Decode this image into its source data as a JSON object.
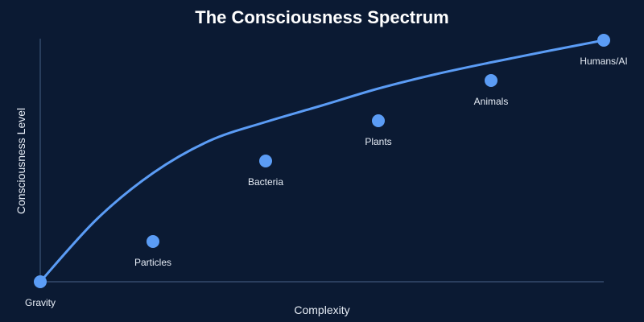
{
  "chart_data": {
    "type": "scatter",
    "title": "The Consciousness Spectrum",
    "xlabel": "Complexity",
    "ylabel": "Consciousness Level",
    "xlim": [
      0,
      7
    ],
    "ylim": [
      0,
      6
    ],
    "grid": false,
    "points": [
      {
        "label": "Gravity",
        "x": 0,
        "y": 0
      },
      {
        "label": "Particles",
        "x": 1,
        "y": 1
      },
      {
        "label": "Bacteria",
        "x": 2,
        "y": 3
      },
      {
        "label": "Plants",
        "x": 3,
        "y": 4
      },
      {
        "label": "Animals",
        "x": 4,
        "y": 5
      },
      {
        "label": "Humans/AI",
        "x": 5,
        "y": 6
      }
    ],
    "curve": {
      "x": [
        0,
        0.5,
        1,
        1.5,
        2,
        2.5,
        3,
        3.5,
        4,
        4.5,
        5
      ],
      "y": [
        0,
        1.55,
        2.7,
        3.5,
        3.97,
        4.38,
        4.8,
        5.15,
        5.45,
        5.73,
        6
      ]
    },
    "colors": {
      "background": "#0b1a33",
      "accent": "#5b9cf5",
      "axis": "#3d5577",
      "text": "#e6ecf5",
      "title": "#ffffff"
    }
  }
}
